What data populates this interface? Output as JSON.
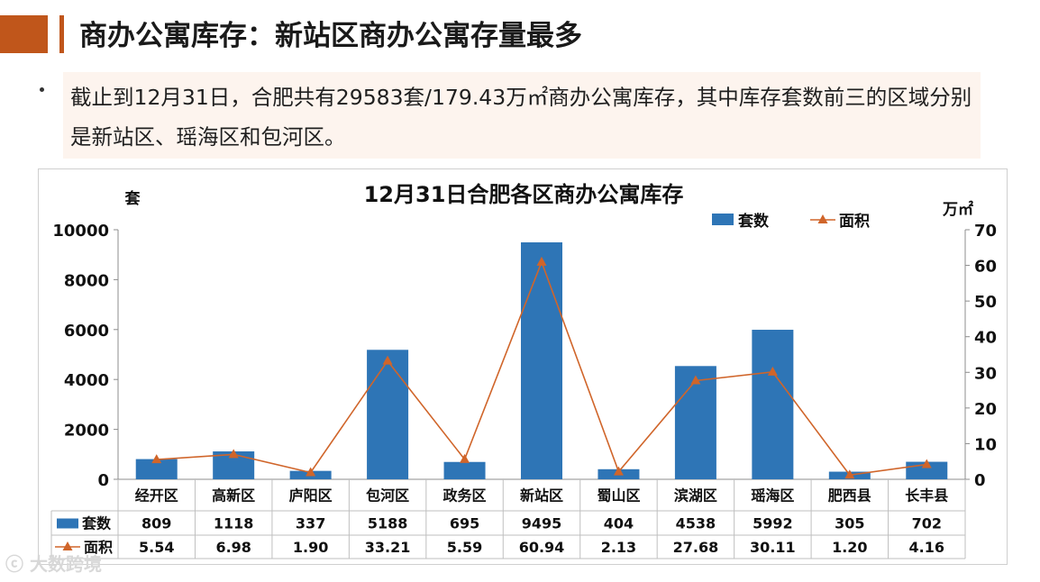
{
  "slide": {
    "title": "商办公寓库存：新站区商办公寓存量最多",
    "bullet_text": "截止到12月31日，合肥共有29583套/179.43万㎡商办公寓库存，其中库存套数前三的区域分别是新站区、瑶海区和包河区。",
    "watermark": "大数跨境"
  },
  "colors": {
    "accent": "#c0561b",
    "bar": "#2e75b6",
    "line": "#d0652a"
  },
  "chart_data": {
    "type": "bar",
    "title": "12月31日合肥各区商办公寓库存",
    "ylabel_left": "套",
    "ylabel_right": "万㎡",
    "categories": [
      "经开区",
      "高新区",
      "庐阳区",
      "包河区",
      "政务区",
      "新站区",
      "蜀山区",
      "滨湖区",
      "瑶海区",
      "肥西县",
      "长丰县"
    ],
    "series": [
      {
        "name": "套数",
        "type": "bar",
        "axis": "left",
        "values": [
          809,
          1118,
          337,
          5188,
          695,
          9495,
          404,
          4538,
          5992,
          305,
          702
        ],
        "labels": [
          "809",
          "1118",
          "337",
          "5188",
          "695",
          "9495",
          "404",
          "4538",
          "5992",
          "305",
          "702"
        ]
      },
      {
        "name": "面积",
        "type": "line",
        "axis": "right",
        "values": [
          5.54,
          6.98,
          1.9,
          33.21,
          5.59,
          60.94,
          2.13,
          27.68,
          30.11,
          1.2,
          4.16
        ],
        "labels": [
          "5.54",
          "6.98",
          "1.90",
          "33.21",
          "5.59",
          "60.94",
          "2.13",
          "27.68",
          "30.11",
          "1.20",
          "4.16"
        ]
      }
    ],
    "ylim_left": [
      0,
      10000
    ],
    "yticks_left": [
      0,
      2000,
      4000,
      6000,
      8000,
      10000
    ],
    "ylim_right": [
      0,
      70
    ],
    "yticks_right": [
      0,
      10,
      20,
      30,
      40,
      50,
      60,
      70
    ],
    "legend_position": "top-right",
    "grid": false,
    "data_table": true
  }
}
